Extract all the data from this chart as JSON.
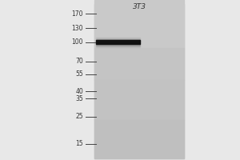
{
  "fig_bg": "#e8e8e8",
  "left_bg": "#e8e8e8",
  "lane_color_light": "#c0c0c0",
  "lane_color_dark": "#b0b0b0",
  "band_color": "#111111",
  "markers": [
    170,
    130,
    100,
    70,
    55,
    40,
    35,
    25,
    15
  ],
  "lane_label": "3T3",
  "marker_fontsize": 5.5,
  "label_fontsize": 6.5
}
